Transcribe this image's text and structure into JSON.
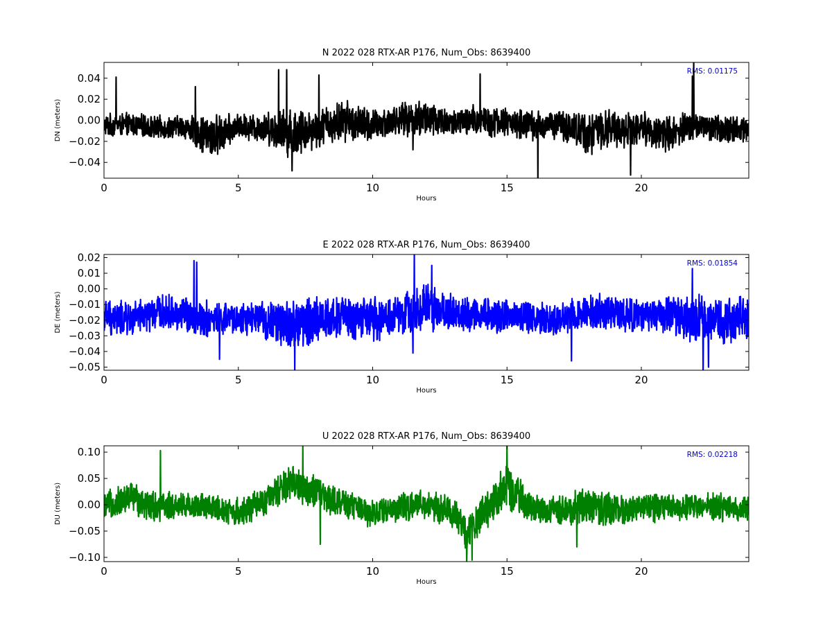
{
  "chart_data": [
    {
      "type": "line",
      "title": "N 2022 028 RTX-AR  P176, Num_Obs: 8639400",
      "xlabel": "Hours",
      "ylabel": "DN (meters)",
      "xlim": [
        0,
        24
      ],
      "ylim": [
        -0.055,
        0.055
      ],
      "xticks": [
        0,
        5,
        10,
        15,
        20
      ],
      "yticks": [
        -0.04,
        -0.02,
        0.0,
        0.02,
        0.04
      ],
      "ytick_labels": [
        "−0.04",
        "−0.02",
        "0.00",
        "0.02",
        "0.04"
      ],
      "grid": false,
      "series": [
        {
          "color": "#000000",
          "mean_offset": [
            [
              0,
              -0.005
            ],
            [
              1,
              -0.004
            ],
            [
              2,
              -0.007
            ],
            [
              3,
              -0.006
            ],
            [
              4,
              -0.017
            ],
            [
              5,
              -0.006
            ],
            [
              6,
              -0.007
            ],
            [
              7,
              -0.012
            ],
            [
              8,
              -0.007
            ],
            [
              9,
              0.0
            ],
            [
              10,
              -0.006
            ],
            [
              11,
              0.001
            ],
            [
              12,
              0.002
            ],
            [
              13,
              -0.003
            ],
            [
              14,
              0.0
            ],
            [
              15,
              -0.002
            ],
            [
              16,
              -0.005
            ],
            [
              17,
              -0.004
            ],
            [
              18,
              -0.012
            ],
            [
              19,
              -0.008
            ],
            [
              20,
              -0.007
            ],
            [
              21,
              -0.014
            ],
            [
              22,
              -0.004
            ],
            [
              23,
              -0.009
            ],
            [
              24,
              -0.007
            ]
          ],
          "noise_halfwidth": [
            [
              0,
              0.012
            ],
            [
              3,
              0.012
            ],
            [
              4,
              0.024
            ],
            [
              5,
              0.013
            ],
            [
              6,
              0.016
            ],
            [
              7,
              0.027
            ],
            [
              8,
              0.02
            ],
            [
              9,
              0.022
            ],
            [
              10,
              0.018
            ],
            [
              11,
              0.016
            ],
            [
              12,
              0.021
            ],
            [
              13,
              0.014
            ],
            [
              14,
              0.018
            ],
            [
              15,
              0.015
            ],
            [
              16,
              0.016
            ],
            [
              17,
              0.015
            ],
            [
              18,
              0.023
            ],
            [
              19,
              0.02
            ],
            [
              20,
              0.017
            ],
            [
              21,
              0.02
            ],
            [
              22,
              0.014
            ],
            [
              23,
              0.015
            ],
            [
              24,
              0.014
            ]
          ],
          "spikes": [
            [
              0.45,
              0.041
            ],
            [
              3.4,
              0.032
            ],
            [
              6.5,
              0.048
            ],
            [
              6.8,
              0.048
            ],
            [
              7.0,
              -0.048
            ],
            [
              8.0,
              0.043
            ],
            [
              11.5,
              -0.028
            ],
            [
              14.0,
              0.044
            ],
            [
              16.15,
              -0.055
            ],
            [
              19.6,
              -0.052
            ],
            [
              21.95,
              0.055
            ],
            [
              21.9,
              0.042
            ]
          ]
        }
      ],
      "annotation": "RMS:  0.01175",
      "annotation_color": "#0000cc"
    },
    {
      "type": "line",
      "title": "E 2022 028 RTX-AR  P176, Num_Obs: 8639400",
      "xlabel": "Hours",
      "ylabel": "DE (meters)",
      "xlim": [
        0,
        24
      ],
      "ylim": [
        -0.052,
        0.022
      ],
      "xticks": [
        0,
        5,
        10,
        15,
        20
      ],
      "yticks": [
        -0.05,
        -0.04,
        -0.03,
        -0.02,
        -0.01,
        0.0,
        0.01,
        0.02
      ],
      "ytick_labels": [
        "−0.05",
        "−0.04",
        "−0.03",
        "−0.02",
        "−0.01",
        "0.00",
        "0.01",
        "0.02"
      ],
      "grid": false,
      "series": [
        {
          "color": "#0000ff",
          "mean_offset": [
            [
              0,
              -0.018
            ],
            [
              1,
              -0.02
            ],
            [
              2,
              -0.015
            ],
            [
              3,
              -0.016
            ],
            [
              4,
              -0.02
            ],
            [
              5,
              -0.019
            ],
            [
              6,
              -0.02
            ],
            [
              7,
              -0.024
            ],
            [
              8,
              -0.019
            ],
            [
              9,
              -0.018
            ],
            [
              10,
              -0.02
            ],
            [
              11,
              -0.017
            ],
            [
              12,
              -0.011
            ],
            [
              13,
              -0.016
            ],
            [
              14,
              -0.016
            ],
            [
              15,
              -0.017
            ],
            [
              16,
              -0.018
            ],
            [
              17,
              -0.019
            ],
            [
              18,
              -0.014
            ],
            [
              19,
              -0.016
            ],
            [
              20,
              -0.018
            ],
            [
              21,
              -0.016
            ],
            [
              22,
              -0.02
            ],
            [
              23,
              -0.02
            ],
            [
              24,
              -0.019
            ]
          ],
          "noise_halfwidth": [
            [
              0,
              0.013
            ],
            [
              2,
              0.012
            ],
            [
              3,
              0.013
            ],
            [
              4,
              0.013
            ],
            [
              5,
              0.011
            ],
            [
              6,
              0.013
            ],
            [
              7,
              0.02
            ],
            [
              8,
              0.016
            ],
            [
              9,
              0.015
            ],
            [
              10,
              0.016
            ],
            [
              11,
              0.014
            ],
            [
              12,
              0.018
            ],
            [
              13,
              0.013
            ],
            [
              14,
              0.013
            ],
            [
              15,
              0.012
            ],
            [
              16,
              0.012
            ],
            [
              17,
              0.012
            ],
            [
              18,
              0.014
            ],
            [
              19,
              0.013
            ],
            [
              20,
              0.012
            ],
            [
              21,
              0.013
            ],
            [
              22,
              0.017
            ],
            [
              23,
              0.016
            ],
            [
              24,
              0.015
            ]
          ],
          "spikes": [
            [
              3.35,
              0.018
            ],
            [
              3.45,
              0.017
            ],
            [
              11.55,
              0.022
            ],
            [
              12.2,
              0.015
            ],
            [
              4.3,
              -0.045
            ],
            [
              7.1,
              -0.052
            ],
            [
              11.5,
              -0.041
            ],
            [
              17.4,
              -0.046
            ],
            [
              21.9,
              0.013
            ],
            [
              22.3,
              -0.052
            ],
            [
              22.5,
              -0.05
            ]
          ]
        }
      ],
      "annotation": "RMS:  0.01854",
      "annotation_color": "#0000cc"
    },
    {
      "type": "line",
      "title": "U 2022 028 RTX-AR  P176, Num_Obs: 8639400",
      "xlabel": "Hours",
      "ylabel": "DU (meters)",
      "xlim": [
        0,
        24
      ],
      "ylim": [
        -0.108,
        0.112
      ],
      "xticks": [
        0,
        5,
        10,
        15,
        20
      ],
      "yticks": [
        -0.1,
        -0.05,
        0.0,
        0.05,
        0.1
      ],
      "ytick_labels": [
        "−0.10",
        "−0.05",
        "0.00",
        "0.05",
        "0.10"
      ],
      "grid": false,
      "series": [
        {
          "color": "#008000",
          "mean_offset": [
            [
              0,
              -0.005
            ],
            [
              1,
              0.015
            ],
            [
              2,
              -0.005
            ],
            [
              3,
              0.0
            ],
            [
              4,
              -0.005
            ],
            [
              5,
              -0.015
            ],
            [
              6,
              0.005
            ],
            [
              7,
              0.045
            ],
            [
              8,
              0.02
            ],
            [
              9,
              0.0
            ],
            [
              10,
              -0.015
            ],
            [
              11,
              -0.005
            ],
            [
              12,
              0.0
            ],
            [
              13,
              -0.015
            ],
            [
              13.5,
              -0.055
            ],
            [
              14,
              -0.02
            ],
            [
              15,
              0.035
            ],
            [
              16,
              -0.01
            ],
            [
              17,
              -0.01
            ],
            [
              18,
              0.0
            ],
            [
              19,
              -0.01
            ],
            [
              20,
              -0.005
            ],
            [
              21,
              -0.005
            ],
            [
              22,
              0.0
            ],
            [
              23,
              -0.005
            ],
            [
              24,
              -0.01
            ]
          ],
          "noise_halfwidth": [
            [
              0,
              0.03
            ],
            [
              1,
              0.035
            ],
            [
              2,
              0.033
            ],
            [
              3,
              0.028
            ],
            [
              5,
              0.03
            ],
            [
              6,
              0.03
            ],
            [
              7,
              0.04
            ],
            [
              8,
              0.035
            ],
            [
              9,
              0.03
            ],
            [
              10,
              0.03
            ],
            [
              12,
              0.03
            ],
            [
              13,
              0.035
            ],
            [
              14,
              0.04
            ],
            [
              15,
              0.045
            ],
            [
              16,
              0.03
            ],
            [
              17,
              0.03
            ],
            [
              18,
              0.04
            ],
            [
              19,
              0.035
            ],
            [
              20,
              0.03
            ],
            [
              22,
              0.03
            ],
            [
              24,
              0.03
            ]
          ],
          "spikes": [
            [
              2.1,
              0.103
            ],
            [
              7.4,
              0.112
            ],
            [
              15.0,
              0.112
            ],
            [
              8.05,
              -0.075
            ],
            [
              13.5,
              -0.108
            ],
            [
              13.7,
              -0.105
            ],
            [
              17.6,
              -0.08
            ]
          ]
        }
      ],
      "annotation": "RMS:  0.02218",
      "annotation_color": "#0000cc"
    }
  ]
}
